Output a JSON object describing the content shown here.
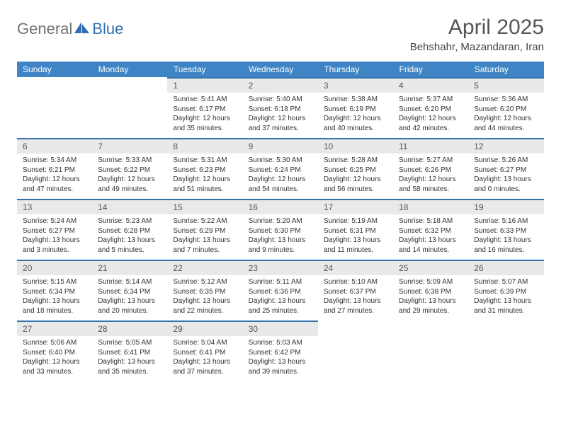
{
  "logo": {
    "part1": "General",
    "part2": "Blue"
  },
  "title": "April 2025",
  "location": "Behshahr, Mazandaran, Iran",
  "colors": {
    "header_bg": "#3f85c6",
    "header_text": "#ffffff",
    "daynum_bg": "#e9e9e9",
    "daynum_border": "#3573ae",
    "text": "#333333",
    "title_color": "#555555",
    "logo_gray": "#6f7374",
    "logo_blue": "#2f6fb0"
  },
  "day_headers": [
    "Sunday",
    "Monday",
    "Tuesday",
    "Wednesday",
    "Thursday",
    "Friday",
    "Saturday"
  ],
  "weeks": [
    [
      {
        "empty": true
      },
      {
        "empty": true
      },
      {
        "n": "1",
        "sunrise": "5:41 AM",
        "sunset": "6:17 PM",
        "daylight": "12 hours and 35 minutes."
      },
      {
        "n": "2",
        "sunrise": "5:40 AM",
        "sunset": "6:18 PM",
        "daylight": "12 hours and 37 minutes."
      },
      {
        "n": "3",
        "sunrise": "5:38 AM",
        "sunset": "6:19 PM",
        "daylight": "12 hours and 40 minutes."
      },
      {
        "n": "4",
        "sunrise": "5:37 AM",
        "sunset": "6:20 PM",
        "daylight": "12 hours and 42 minutes."
      },
      {
        "n": "5",
        "sunrise": "5:36 AM",
        "sunset": "6:20 PM",
        "daylight": "12 hours and 44 minutes."
      }
    ],
    [
      {
        "n": "6",
        "sunrise": "5:34 AM",
        "sunset": "6:21 PM",
        "daylight": "12 hours and 47 minutes."
      },
      {
        "n": "7",
        "sunrise": "5:33 AM",
        "sunset": "6:22 PM",
        "daylight": "12 hours and 49 minutes."
      },
      {
        "n": "8",
        "sunrise": "5:31 AM",
        "sunset": "6:23 PM",
        "daylight": "12 hours and 51 minutes."
      },
      {
        "n": "9",
        "sunrise": "5:30 AM",
        "sunset": "6:24 PM",
        "daylight": "12 hours and 54 minutes."
      },
      {
        "n": "10",
        "sunrise": "5:28 AM",
        "sunset": "6:25 PM",
        "daylight": "12 hours and 56 minutes."
      },
      {
        "n": "11",
        "sunrise": "5:27 AM",
        "sunset": "6:26 PM",
        "daylight": "12 hours and 58 minutes."
      },
      {
        "n": "12",
        "sunrise": "5:26 AM",
        "sunset": "6:27 PM",
        "daylight": "13 hours and 0 minutes."
      }
    ],
    [
      {
        "n": "13",
        "sunrise": "5:24 AM",
        "sunset": "6:27 PM",
        "daylight": "13 hours and 3 minutes."
      },
      {
        "n": "14",
        "sunrise": "5:23 AM",
        "sunset": "6:28 PM",
        "daylight": "13 hours and 5 minutes."
      },
      {
        "n": "15",
        "sunrise": "5:22 AM",
        "sunset": "6:29 PM",
        "daylight": "13 hours and 7 minutes."
      },
      {
        "n": "16",
        "sunrise": "5:20 AM",
        "sunset": "6:30 PM",
        "daylight": "13 hours and 9 minutes."
      },
      {
        "n": "17",
        "sunrise": "5:19 AM",
        "sunset": "6:31 PM",
        "daylight": "13 hours and 11 minutes."
      },
      {
        "n": "18",
        "sunrise": "5:18 AM",
        "sunset": "6:32 PM",
        "daylight": "13 hours and 14 minutes."
      },
      {
        "n": "19",
        "sunrise": "5:16 AM",
        "sunset": "6:33 PM",
        "daylight": "13 hours and 16 minutes."
      }
    ],
    [
      {
        "n": "20",
        "sunrise": "5:15 AM",
        "sunset": "6:34 PM",
        "daylight": "13 hours and 18 minutes."
      },
      {
        "n": "21",
        "sunrise": "5:14 AM",
        "sunset": "6:34 PM",
        "daylight": "13 hours and 20 minutes."
      },
      {
        "n": "22",
        "sunrise": "5:12 AM",
        "sunset": "6:35 PM",
        "daylight": "13 hours and 22 minutes."
      },
      {
        "n": "23",
        "sunrise": "5:11 AM",
        "sunset": "6:36 PM",
        "daylight": "13 hours and 25 minutes."
      },
      {
        "n": "24",
        "sunrise": "5:10 AM",
        "sunset": "6:37 PM",
        "daylight": "13 hours and 27 minutes."
      },
      {
        "n": "25",
        "sunrise": "5:09 AM",
        "sunset": "6:38 PM",
        "daylight": "13 hours and 29 minutes."
      },
      {
        "n": "26",
        "sunrise": "5:07 AM",
        "sunset": "6:39 PM",
        "daylight": "13 hours and 31 minutes."
      }
    ],
    [
      {
        "n": "27",
        "sunrise": "5:06 AM",
        "sunset": "6:40 PM",
        "daylight": "13 hours and 33 minutes."
      },
      {
        "n": "28",
        "sunrise": "5:05 AM",
        "sunset": "6:41 PM",
        "daylight": "13 hours and 35 minutes."
      },
      {
        "n": "29",
        "sunrise": "5:04 AM",
        "sunset": "6:41 PM",
        "daylight": "13 hours and 37 minutes."
      },
      {
        "n": "30",
        "sunrise": "5:03 AM",
        "sunset": "6:42 PM",
        "daylight": "13 hours and 39 minutes."
      },
      {
        "empty": true
      },
      {
        "empty": true
      },
      {
        "empty": true
      }
    ]
  ]
}
